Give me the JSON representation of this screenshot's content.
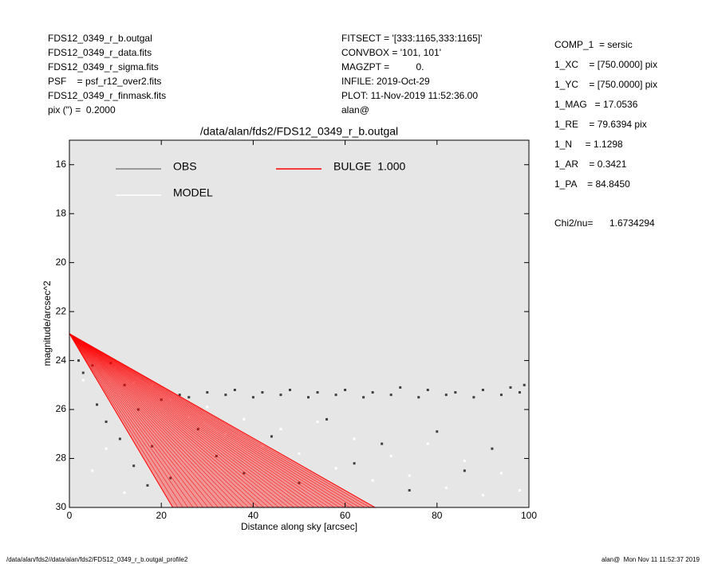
{
  "header": {
    "left": [
      "FDS12_0349_r_b.outgal",
      "FDS12_0349_r_data.fits",
      "FDS12_0349_r_sigma.fits",
      "PSF    = psf_r12_over2.fits",
      "FDS12_0349_r_finmask.fits",
      "pix (\") =  0.2000"
    ],
    "middle": [
      "FITSECT = '[333:1165,333:1165]'",
      "CONVBOX = '101, 101'",
      "MAGZPT =          0.",
      "INFILE: 2019-Oct-29",
      "PLOT: 11-Nov-2019 11:52:36.00",
      "alan@"
    ],
    "right": [
      "COMP_1  = sersic",
      "1_XC    = [750.0000] pix",
      "1_YC    = [750.0000] pix",
      "1_MAG   = 17.0536",
      "1_RE    = 79.6394 pix",
      "1_N     = 1.1298",
      "1_AR    = 0.3421",
      "1_PA    = 84.8450"
    ],
    "chi2_label": "Chi2/nu=",
    "chi2_value": "1.6734294"
  },
  "footer": {
    "left": "/data/alan/fds2//data/alan/fds2/FDS12_0349_r_b.outgal_profile2",
    "right": "alan@  Mon Nov 11 11:52:37 2019"
  },
  "chart_data": {
    "type": "scatter",
    "title": "/data/alan/fds2/FDS12_0349_r_b.outgal",
    "x_label": "Distance along sky [arcsec]",
    "y_label": "magnitude/arcsec^2",
    "xlim": [
      0,
      100
    ],
    "xticks": [
      0,
      20,
      40,
      60,
      80,
      100
    ],
    "ylim": [
      30,
      15
    ],
    "yticks": [
      16,
      18,
      20,
      22,
      24,
      26,
      28,
      30
    ],
    "background": "#e6e6e6",
    "series": [
      {
        "name": "OBS",
        "color": "#404040",
        "legend_color": "#808080",
        "x": [
          2,
          3,
          5,
          6,
          8,
          9,
          11,
          12,
          14,
          15,
          17,
          18,
          20,
          22,
          24,
          26,
          28,
          30,
          32,
          34,
          36,
          38,
          40,
          42,
          44,
          46,
          48,
          50,
          52,
          54,
          56,
          58,
          60,
          62,
          64,
          66,
          68,
          70,
          72,
          74,
          76,
          78,
          80,
          82,
          84,
          86,
          88,
          90,
          92,
          94,
          96,
          98,
          99
        ],
        "values": [
          24.0,
          24.5,
          24.2,
          25.8,
          26.5,
          24.1,
          27.2,
          25.0,
          28.3,
          26.0,
          29.1,
          27.5,
          25.6,
          28.8,
          25.4,
          25.5,
          26.8,
          25.3,
          27.9,
          25.4,
          25.2,
          28.6,
          25.5,
          25.3,
          27.1,
          25.4,
          25.2,
          29.0,
          25.5,
          25.3,
          26.4,
          25.4,
          25.2,
          28.2,
          25.5,
          25.3,
          27.4,
          25.4,
          25.1,
          29.3,
          25.5,
          25.2,
          26.9,
          25.4,
          25.3,
          28.5,
          25.5,
          25.2,
          27.6,
          25.4,
          25.1,
          25.3,
          25.0
        ]
      },
      {
        "name": "MODEL",
        "color": "#ffffff",
        "legend_color": "#ffffff",
        "x": [
          3,
          6,
          10,
          14,
          18,
          22,
          26,
          30,
          34,
          38,
          42,
          46,
          50,
          54,
          58,
          62,
          66,
          70,
          74,
          78,
          82,
          86,
          90,
          94,
          98,
          5,
          12,
          8
        ],
        "values": [
          24.8,
          23.9,
          24.3,
          24.9,
          25.0,
          25.6,
          26.3,
          25.9,
          27.0,
          26.4,
          27.5,
          26.8,
          27.8,
          26.5,
          28.4,
          27.2,
          28.9,
          27.9,
          28.7,
          27.4,
          29.2,
          28.1,
          29.5,
          28.6,
          29.3,
          28.5,
          29.4,
          27.6
        ]
      },
      {
        "name": "BULGE  1.000",
        "color": "#ff0000",
        "legend_color": "#ff0000",
        "kind": "area",
        "x": [
          0,
          22.5,
          66.5
        ],
        "values": [
          22.9,
          30,
          30
        ]
      }
    ]
  }
}
